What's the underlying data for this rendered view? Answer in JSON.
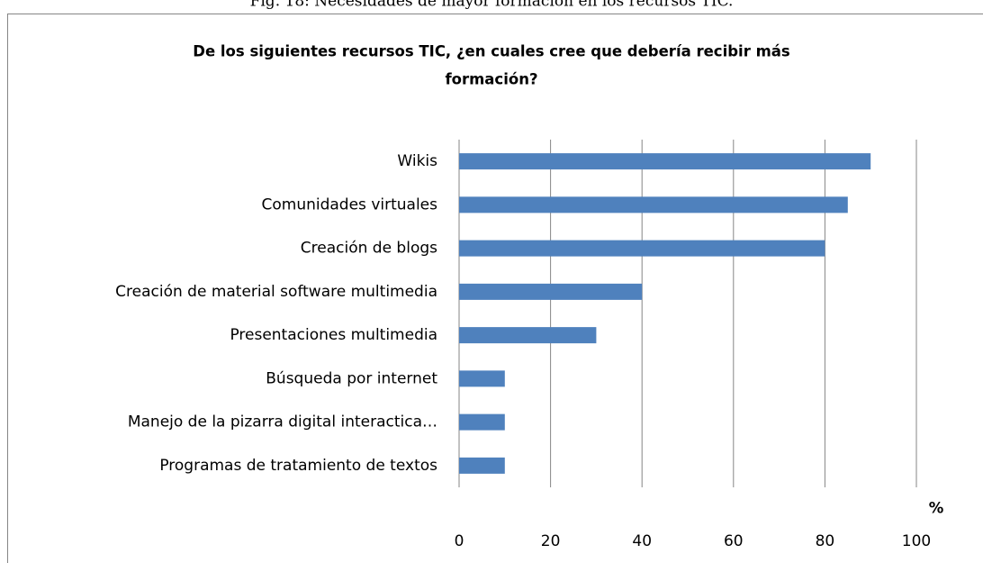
{
  "chart_data": {
    "type": "bar",
    "orientation": "horizontal",
    "caption": "Fig. 18: Necesidades de mayor formación en los recursos TIC.",
    "title": [
      "De los siguientes recursos TIC, ¿en cuales cree que debería recibir más",
      "formación?"
    ],
    "x_label": "%",
    "categories": [
      "Wikis",
      "Comunidades virtuales",
      "Creación de blogs",
      "Creación de material software multimedia",
      "Presentaciones multimedia",
      "Búsqueda por internet",
      "Manejo de la pizarra digital interactica…",
      "Programas de tratamiento de textos"
    ],
    "values": [
      90,
      85,
      80,
      40,
      30,
      10,
      10,
      10
    ],
    "color": "#4f81bd",
    "xlim": [
      0,
      100
    ],
    "xticks": [
      0,
      20,
      40,
      60,
      80,
      100
    ],
    "grid": true
  }
}
